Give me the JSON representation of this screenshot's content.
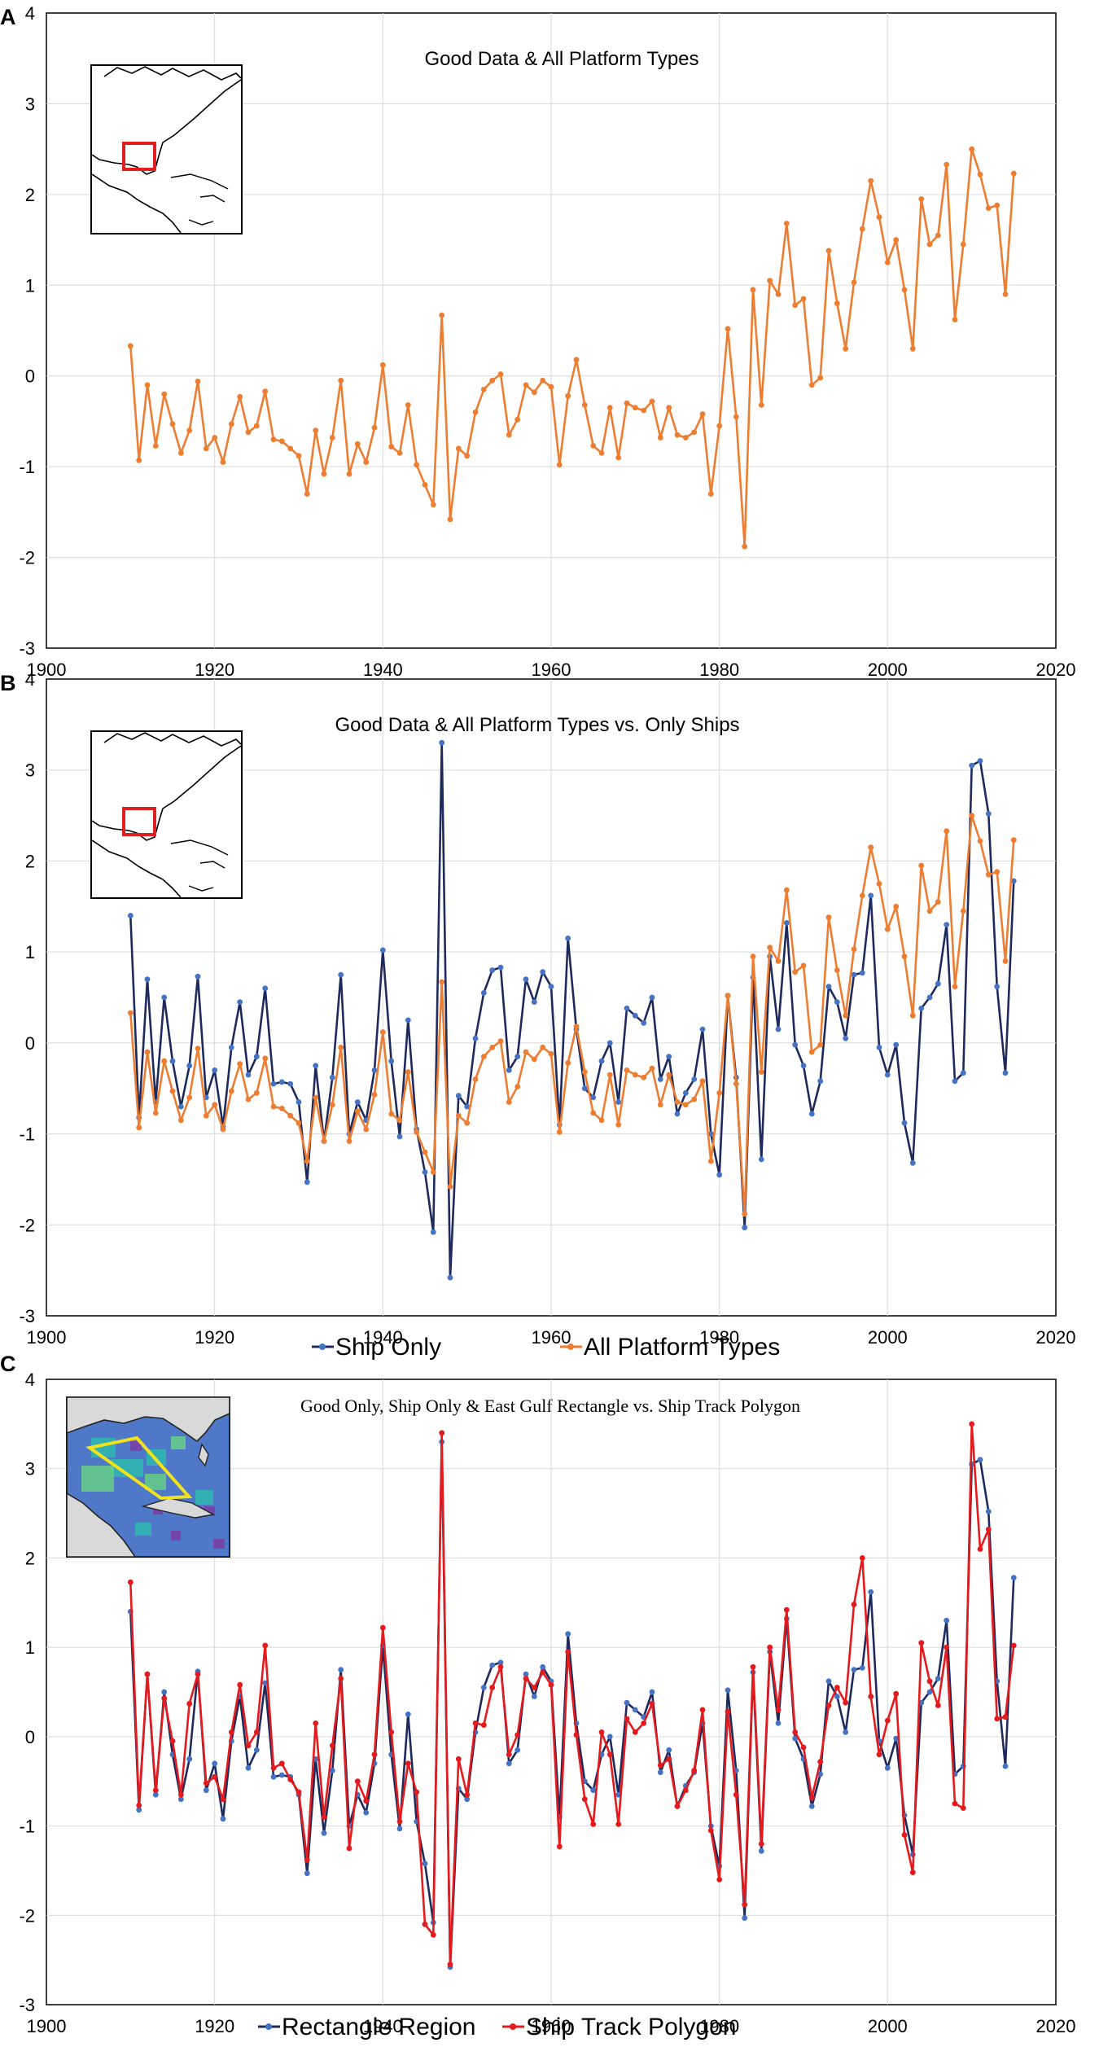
{
  "colors": {
    "orange": "#ED7D31",
    "navy": "#1F2A5C",
    "blue_marker": "#4472C4",
    "red": "#E41A1C",
    "grid": "#D9D9D9",
    "frame": "#000000",
    "map_box": "#E02020",
    "polygon": "#F2E21B"
  },
  "chart_data": [
    {
      "panel_label": "A",
      "type": "line",
      "title": "Good Data & All Platform Types",
      "xlim": [
        1900,
        2020
      ],
      "ylim": [
        -3,
        4
      ],
      "x_ticks": [
        "1900",
        "1920",
        "1940",
        "1960",
        "1980",
        "2000",
        "2020"
      ],
      "y_ticks": [
        "-3",
        "-2",
        "-1",
        "0",
        "1",
        "2",
        "3",
        "4"
      ],
      "inset": "map-rectangle",
      "legend": [],
      "series": [
        {
          "name": "All Platform Types",
          "color": "#ED7D31",
          "marker": "#ED7D31",
          "x0": 1910,
          "values": [
            0.33,
            -0.93,
            -0.1,
            -0.77,
            -0.2,
            -0.53,
            -0.85,
            -0.6,
            -0.06,
            -0.8,
            -0.68,
            -0.95,
            -0.53,
            -0.23,
            -0.62,
            -0.55,
            -0.17,
            -0.7,
            -0.72,
            -0.8,
            -0.88,
            -1.3,
            -0.6,
            -1.08,
            -0.68,
            -0.05,
            -1.08,
            -0.75,
            -0.95,
            -0.57,
            0.12,
            -0.78,
            -0.85,
            -0.32,
            -0.98,
            -1.2,
            -1.42,
            0.67,
            -1.58,
            -0.8,
            -0.88,
            -0.4,
            -0.15,
            -0.05,
            0.02,
            -0.65,
            -0.48,
            -0.1,
            -0.18,
            -0.05,
            -0.12,
            -0.98,
            -0.22,
            0.18,
            -0.32,
            -0.77,
            -0.85,
            -0.35,
            -0.9,
            -0.3,
            -0.35,
            -0.38,
            -0.28,
            -0.68,
            -0.35,
            -0.65,
            -0.68,
            -0.62,
            -0.42,
            -1.3,
            -0.55,
            0.52,
            -0.45,
            -1.88,
            0.95,
            -0.32,
            1.05,
            0.9,
            1.68,
            0.78,
            0.85,
            -0.1,
            -0.02,
            1.38,
            0.8,
            0.3,
            1.03,
            1.62,
            2.15,
            1.75,
            1.25,
            1.5,
            0.95,
            0.3,
            1.95,
            1.45,
            1.55,
            2.33,
            0.62,
            1.45,
            2.5,
            2.22,
            1.85,
            1.88,
            0.9,
            2.23
          ]
        }
      ]
    },
    {
      "panel_label": "B",
      "type": "line",
      "title": "Good Data & All Platform Types vs. Only Ships",
      "xlim": [
        1900,
        2020
      ],
      "ylim": [
        -3,
        4
      ],
      "x_ticks": [
        "1900",
        "1920",
        "1940",
        "1960",
        "1980",
        "2000",
        "2020"
      ],
      "y_ticks": [
        "-3",
        "-2",
        "-1",
        "0",
        "1",
        "2",
        "3",
        "4"
      ],
      "inset": "map-rectangle",
      "legend": [
        "Ship Only",
        "All Platform Types"
      ],
      "series": [
        {
          "name": "Ship Only",
          "color": "#1F2A5C",
          "marker": "#4472C4",
          "x0": 1910,
          "values": [
            1.4,
            -0.82,
            0.7,
            -0.65,
            0.5,
            -0.2,
            -0.7,
            -0.25,
            0.73,
            -0.6,
            -0.3,
            -0.92,
            -0.05,
            0.45,
            -0.35,
            -0.15,
            0.6,
            -0.45,
            -0.43,
            -0.45,
            -0.65,
            -1.53,
            -0.25,
            -1.08,
            -0.38,
            0.75,
            -1.0,
            -0.65,
            -0.85,
            -0.3,
            1.02,
            -0.2,
            -1.03,
            0.25,
            -0.95,
            -1.42,
            -2.08,
            3.3,
            -2.58,
            -0.58,
            -0.7,
            0.05,
            0.55,
            0.8,
            0.83,
            -0.3,
            -0.15,
            0.7,
            0.45,
            0.78,
            0.62,
            -0.9,
            1.15,
            0.15,
            -0.5,
            -0.6,
            -0.2,
            0.0,
            -0.65,
            0.38,
            0.3,
            0.22,
            0.5,
            -0.4,
            -0.15,
            -0.78,
            -0.55,
            -0.4,
            0.15,
            -1.0,
            -1.45,
            0.52,
            -0.38,
            -2.03,
            0.72,
            -1.28,
            0.95,
            0.15,
            1.32,
            -0.02,
            -0.25,
            -0.78,
            -0.42,
            0.62,
            0.45,
            0.05,
            0.75,
            0.77,
            1.62,
            -0.05,
            -0.35,
            -0.02,
            -0.88,
            -1.32,
            0.38,
            0.5,
            0.65,
            1.3,
            -0.42,
            -0.33,
            3.05,
            3.1,
            2.52,
            0.62,
            -0.33,
            1.78
          ]
        },
        {
          "name": "All Platform Types",
          "color": "#ED7D31",
          "marker": "#ED7D31",
          "x0": 1910,
          "values": [
            0.33,
            -0.93,
            -0.1,
            -0.77,
            -0.2,
            -0.53,
            -0.85,
            -0.6,
            -0.06,
            -0.8,
            -0.68,
            -0.95,
            -0.53,
            -0.23,
            -0.62,
            -0.55,
            -0.17,
            -0.7,
            -0.72,
            -0.8,
            -0.88,
            -1.3,
            -0.6,
            -1.08,
            -0.68,
            -0.05,
            -1.08,
            -0.75,
            -0.95,
            -0.57,
            0.12,
            -0.78,
            -0.85,
            -0.32,
            -0.98,
            -1.2,
            -1.42,
            0.67,
            -1.58,
            -0.8,
            -0.88,
            -0.4,
            -0.15,
            -0.05,
            0.02,
            -0.65,
            -0.48,
            -0.1,
            -0.18,
            -0.05,
            -0.12,
            -0.98,
            -0.22,
            0.18,
            -0.32,
            -0.77,
            -0.85,
            -0.35,
            -0.9,
            -0.3,
            -0.35,
            -0.38,
            -0.28,
            -0.68,
            -0.35,
            -0.65,
            -0.68,
            -0.62,
            -0.42,
            -1.3,
            -0.55,
            0.52,
            -0.45,
            -1.88,
            0.95,
            -0.32,
            1.05,
            0.9,
            1.68,
            0.78,
            0.85,
            -0.1,
            -0.02,
            1.38,
            0.8,
            0.3,
            1.03,
            1.62,
            2.15,
            1.75,
            1.25,
            1.5,
            0.95,
            0.3,
            1.95,
            1.45,
            1.55,
            2.33,
            0.62,
            1.45,
            2.5,
            2.22,
            1.85,
            1.88,
            0.9,
            2.23
          ]
        }
      ]
    },
    {
      "panel_label": "C",
      "type": "line",
      "title": "Good Only, Ship Only & East Gulf Rectangle vs. Ship Track Polygon",
      "xlim": [
        1900,
        2020
      ],
      "ylim": [
        -3,
        4
      ],
      "x_ticks": [
        "1900",
        "1920",
        "1940",
        "1960",
        "1980",
        "2000",
        "2020"
      ],
      "y_ticks": [
        "-3",
        "-2",
        "-1",
        "0",
        "1",
        "2",
        "3",
        "4"
      ],
      "inset": "map-polygon",
      "legend": [
        "Rectangle Region",
        "Ship Track Polygon"
      ],
      "series": [
        {
          "name": "Rectangle Region",
          "color": "#1F2A5C",
          "marker": "#4472C4",
          "x0": 1910,
          "values": [
            1.4,
            -0.82,
            0.7,
            -0.65,
            0.5,
            -0.2,
            -0.7,
            -0.25,
            0.73,
            -0.6,
            -0.3,
            -0.92,
            -0.05,
            0.45,
            -0.35,
            -0.15,
            0.6,
            -0.45,
            -0.43,
            -0.45,
            -0.65,
            -1.53,
            -0.25,
            -1.08,
            -0.38,
            0.75,
            -1.0,
            -0.65,
            -0.85,
            -0.3,
            1.02,
            -0.2,
            -1.03,
            0.25,
            -0.95,
            -1.42,
            -2.08,
            3.3,
            -2.58,
            -0.58,
            -0.7,
            0.05,
            0.55,
            0.8,
            0.83,
            -0.3,
            -0.15,
            0.7,
            0.45,
            0.78,
            0.62,
            -0.9,
            1.15,
            0.15,
            -0.5,
            -0.6,
            -0.2,
            0.0,
            -0.65,
            0.38,
            0.3,
            0.22,
            0.5,
            -0.4,
            -0.15,
            -0.78,
            -0.55,
            -0.4,
            0.15,
            -1.0,
            -1.45,
            0.52,
            -0.38,
            -2.03,
            0.72,
            -1.28,
            0.95,
            0.15,
            1.32,
            -0.02,
            -0.25,
            -0.78,
            -0.42,
            0.62,
            0.45,
            0.05,
            0.75,
            0.77,
            1.62,
            -0.05,
            -0.35,
            -0.02,
            -0.88,
            -1.32,
            0.38,
            0.5,
            0.65,
            1.3,
            -0.42,
            -0.33,
            3.05,
            3.1,
            2.52,
            0.62,
            -0.33,
            1.78
          ]
        },
        {
          "name": "Ship Track Polygon",
          "color": "#E41A1C",
          "marker": "#E41A1C",
          "x0": 1910,
          "values": [
            1.73,
            -0.77,
            0.7,
            -0.6,
            0.43,
            -0.05,
            -0.65,
            0.37,
            0.7,
            -0.52,
            -0.45,
            -0.7,
            0.05,
            0.58,
            -0.1,
            0.05,
            1.02,
            -0.35,
            -0.3,
            -0.48,
            -0.62,
            -1.38,
            0.15,
            -0.9,
            -0.1,
            0.65,
            -1.25,
            -0.5,
            -0.72,
            -0.2,
            1.22,
            0.05,
            -0.95,
            -0.3,
            -0.62,
            -2.1,
            -2.22,
            3.4,
            -2.55,
            -0.25,
            -0.65,
            0.15,
            0.13,
            0.55,
            0.78,
            -0.2,
            0.02,
            0.65,
            0.55,
            0.72,
            0.58,
            -1.23,
            0.95,
            0.02,
            -0.7,
            -0.98,
            0.05,
            -0.2,
            -0.98,
            0.2,
            0.05,
            0.15,
            0.37,
            -0.32,
            -0.25,
            -0.78,
            -0.6,
            -0.38,
            0.3,
            -1.05,
            -1.6,
            0.28,
            -0.65,
            -1.88,
            0.78,
            -1.2,
            1.0,
            0.3,
            1.42,
            0.05,
            -0.12,
            -0.68,
            -0.28,
            0.35,
            0.55,
            0.38,
            1.48,
            2.0,
            0.45,
            -0.2,
            0.18,
            0.48,
            -1.1,
            -1.52,
            1.05,
            0.62,
            0.35,
            1.0,
            -0.75,
            -0.8,
            3.5,
            2.1,
            2.32,
            0.2,
            0.22,
            1.02
          ]
        }
      ]
    }
  ]
}
